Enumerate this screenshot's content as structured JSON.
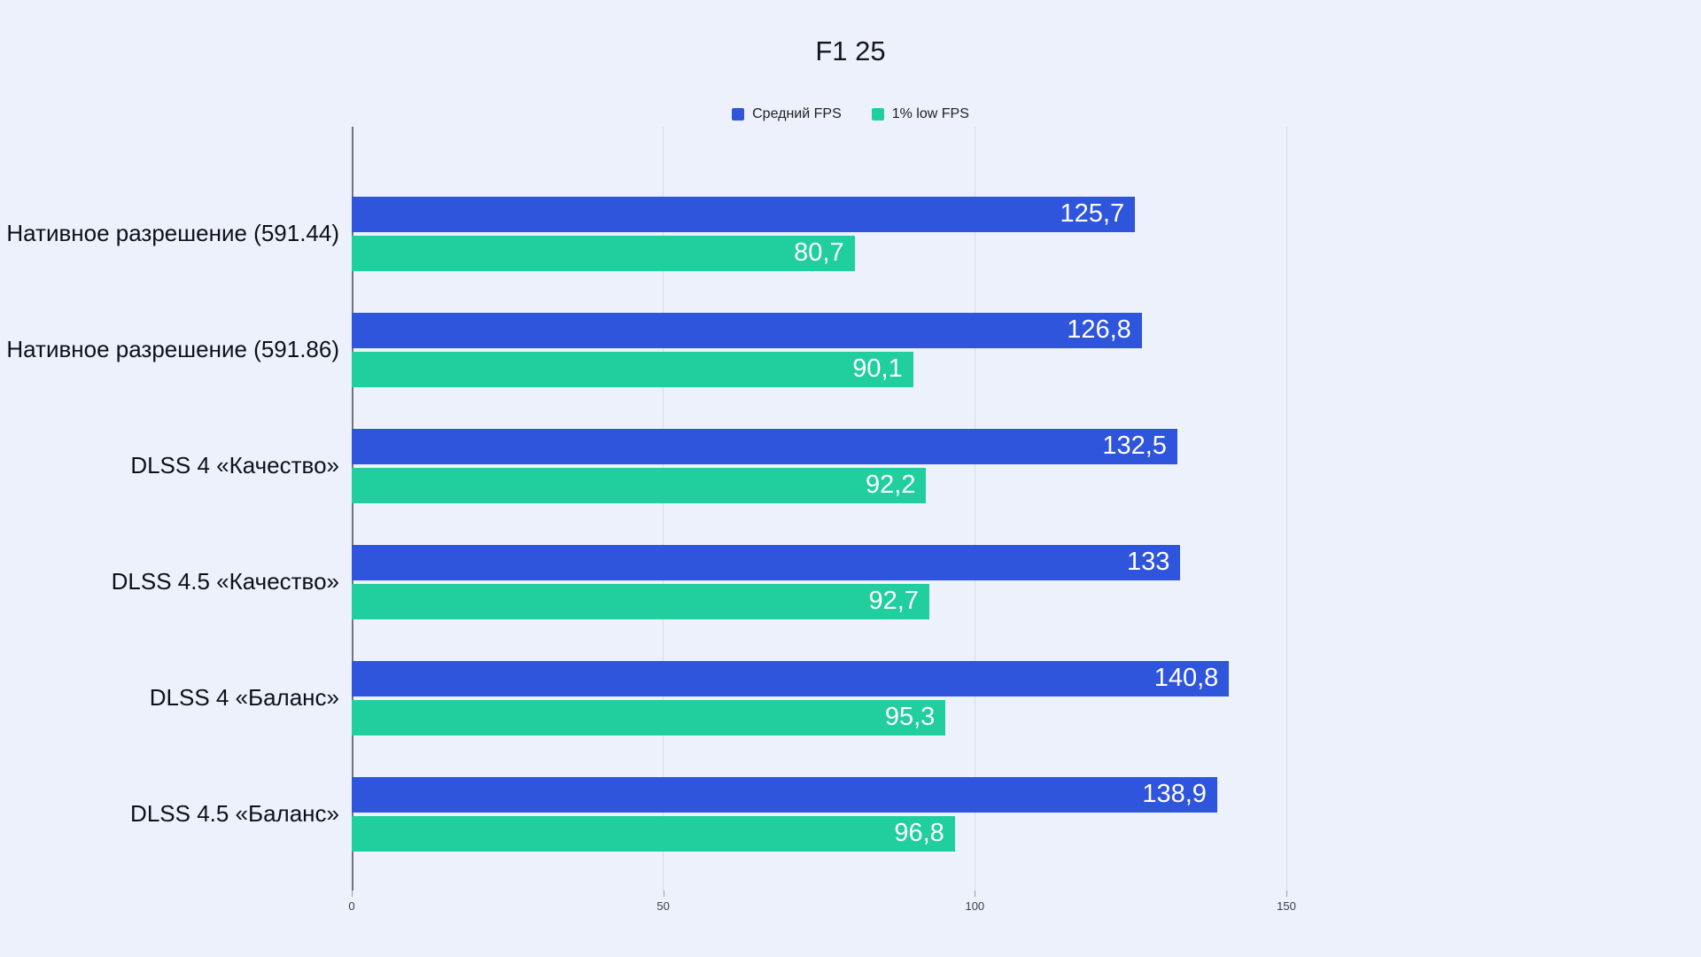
{
  "chart_data": {
    "type": "bar",
    "orientation": "horizontal",
    "title": "F1 25",
    "categories": [
      "Нативное разрешение (591.44)",
      "Нативное разрешение (591.86)",
      "DLSS 4 «Качество»",
      "DLSS 4.5 «Качество»",
      "DLSS 4 «Баланс»",
      "DLSS 4.5 «Баланс»"
    ],
    "series": [
      {
        "name": "Средний FPS",
        "color": "#2e55dc",
        "values": [
          125.7,
          126.8,
          132.5,
          133,
          140.8,
          138.9
        ],
        "display": [
          "125,7",
          "126,8",
          "132,5",
          "133",
          "140,8",
          "138,9"
        ]
      },
      {
        "name": "1% low FPS",
        "color": "#20ce9e",
        "values": [
          80.7,
          90.1,
          92.2,
          92.7,
          95.3,
          96.8
        ],
        "display": [
          "80,7",
          "90,1",
          "92,2",
          "92,7",
          "95,3",
          "96,8"
        ]
      }
    ],
    "xlim": [
      0,
      150
    ],
    "xticks": [
      0,
      50,
      100,
      150
    ],
    "grid": true,
    "legend_position": "top",
    "background": "#edf1fb"
  }
}
